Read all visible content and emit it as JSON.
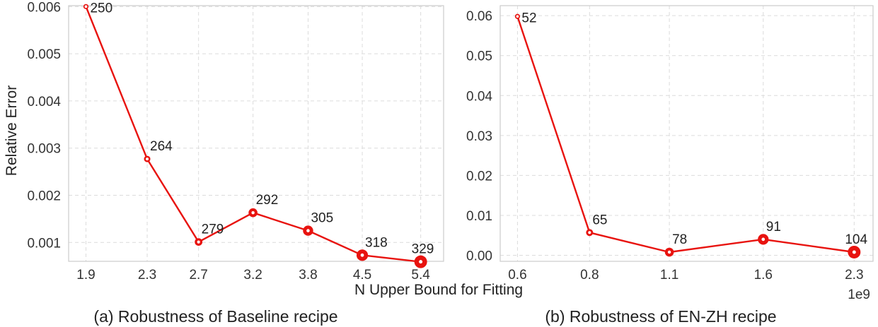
{
  "figure": {
    "shared_xlabel": "N Upper Bound for Fitting",
    "shared_ylabel": "Relative Error"
  },
  "chart_data": [
    {
      "type": "line",
      "caption": "(a) Robustness of Baseline recipe",
      "title": "",
      "xlabel": "N Upper Bound for Fitting",
      "ylabel": "Relative Error",
      "x_scale": "log",
      "xlim": [
        1.8,
        5.8
      ],
      "ylim": [
        0.0006,
        0.00602
      ],
      "x_tick_values": [
        1.9,
        2.3,
        2.7,
        3.2,
        3.8,
        4.5,
        5.4
      ],
      "x_tick_labels": [
        "1.9",
        "2.3",
        "2.7",
        "3.2",
        "3.8",
        "4.5",
        "5.4"
      ],
      "y_ticks": [
        0.001,
        0.002,
        0.003,
        0.004,
        0.005,
        0.006
      ],
      "y_tick_labels": [
        "0.001",
        "0.002",
        "0.003",
        "0.004",
        "0.005",
        "0.006"
      ],
      "grid": true,
      "line_color": "#e8130f",
      "series": [
        {
          "x": [
            1.9,
            2.3,
            2.7,
            3.2,
            3.8,
            4.5,
            5.4
          ],
          "y": [
            0.006,
            0.00277,
            0.00101,
            0.00163,
            0.00125,
            0.00073,
            0.00059
          ],
          "point_labels": [
            "250",
            "264",
            "279",
            "292",
            "305",
            "318",
            "329"
          ]
        }
      ]
    },
    {
      "type": "line",
      "caption": "(b) Robustness of EN-ZH recipe",
      "title": "",
      "xlabel": "N Upper Bound for Fitting",
      "ylabel": "",
      "x_scale": "log",
      "x_offset_label": "1e9",
      "xlim": [
        0.56,
        2.48
      ],
      "ylim": [
        -0.0015,
        0.0625
      ],
      "x_tick_values": [
        0.6,
        0.8,
        1.1,
        1.6,
        2.3
      ],
      "x_tick_labels": [
        "0.6",
        "0.8",
        "1.1",
        "1.6",
        "2.3"
      ],
      "y_ticks": [
        0.0,
        0.01,
        0.02,
        0.03,
        0.04,
        0.05,
        0.06
      ],
      "y_tick_labels": [
        "0.00",
        "0.01",
        "0.02",
        "0.03",
        "0.04",
        "0.05",
        "0.06"
      ],
      "grid": true,
      "line_color": "#e8130f",
      "series": [
        {
          "x": [
            0.6,
            0.8,
            1.1,
            1.6,
            2.3
          ],
          "y": [
            0.0598,
            0.0057,
            0.0008,
            0.004,
            0.0008
          ],
          "point_labels": [
            "52",
            "65",
            "78",
            "91",
            "104"
          ]
        }
      ]
    }
  ]
}
